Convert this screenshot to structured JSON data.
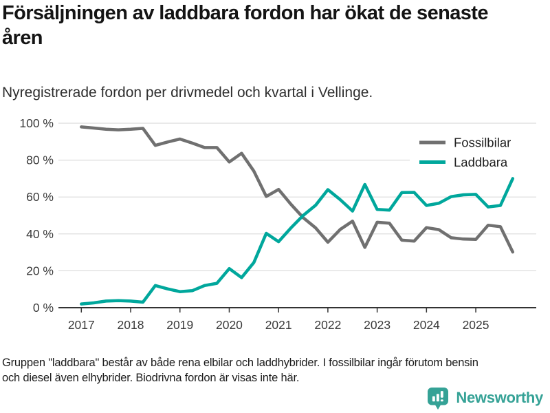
{
  "header": {
    "title": "Försäljningen av laddbara fordon har ökat de senaste åren",
    "subtitle": "Nyregistrerade fordon per drivmedel och kvartal i Vellinge."
  },
  "chart_data": {
    "type": "line",
    "frequency": "quarterly",
    "x_start": "2017 Q1",
    "x_end": "2025 Q4",
    "x_tick_labels": [
      "2017",
      "2018",
      "2019",
      "2020",
      "2021",
      "2022",
      "2023",
      "2024",
      "2025"
    ],
    "y_tick_labels": [
      "0 %",
      "20 %",
      "40 %",
      "60 %",
      "80 %",
      "100 %"
    ],
    "xlabel": "",
    "ylabel": "",
    "ylim": [
      0,
      100
    ],
    "grid": "horizontal",
    "grid_color": "#dcdcdc",
    "axis_color": "#333333",
    "tick_label_color": "#3a3a3a",
    "legend_position": "top-right",
    "series": [
      {
        "name": "Fossilbilar",
        "color": "#707070",
        "values": [
          98,
          97.4,
          96.7,
          96.4,
          96.7,
          97.2,
          88,
          89.8,
          91.4,
          89.2,
          86.8,
          86.8,
          79,
          83.7,
          74,
          60.3,
          64.1,
          56.1,
          48.8,
          43.3,
          35.5,
          42.4,
          46.9,
          32.7,
          46.3,
          45.8,
          36.6,
          36.1,
          43.4,
          42.3,
          37.9,
          37.2,
          37,
          44.7,
          43.9,
          30.2
        ]
      },
      {
        "name": "Laddbara",
        "color": "#00a79c",
        "values": [
          2,
          2.6,
          3.6,
          3.8,
          3.6,
          3,
          12,
          10.2,
          8.7,
          9.2,
          12,
          13.2,
          21.2,
          16.3,
          24.5,
          40.3,
          35.8,
          43.2,
          50,
          55.5,
          64,
          58.6,
          52.4,
          66.8,
          53.3,
          52.9,
          62.4,
          62.5,
          55.4,
          56.6,
          60.2,
          61.2,
          61.4,
          54.6,
          55.4,
          70
        ]
      }
    ]
  },
  "footer": {
    "lines": [
      "Gruppen \"laddbara\" består av både rena elbilar och laddhybrider. I fossilbilar ingår förutom bensin",
      "och diesel även elhybrider. Biodrivna fordon är visas inte här."
    ]
  },
  "branding": {
    "logo_text": "Newsworthy",
    "logo_color": "#35a296",
    "logo_icon": "bar-chart-speech-bubble-icon"
  }
}
